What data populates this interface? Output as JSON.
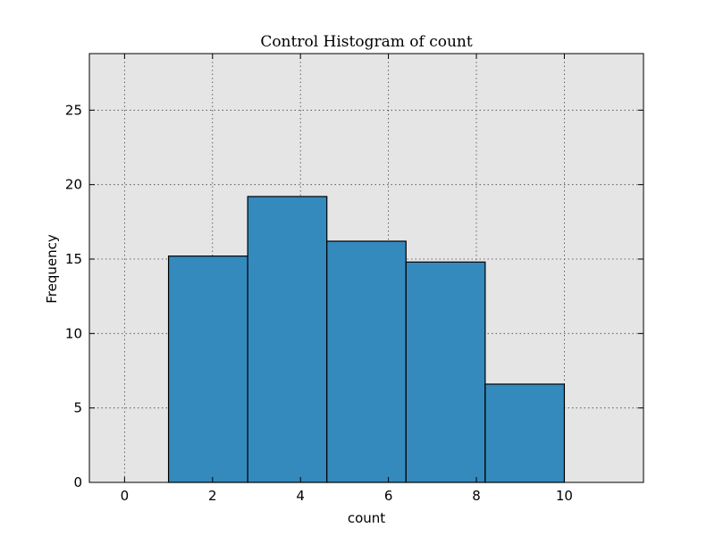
{
  "chart_data": {
    "type": "bar",
    "title": "Control Histogram of count",
    "xlabel": "count",
    "ylabel": "Frequency",
    "xlim": [
      -0.8,
      11.8
    ],
    "ylim": [
      0,
      28.8
    ],
    "x_ticks": [
      0,
      2,
      4,
      6,
      8,
      10
    ],
    "y_ticks": [
      0,
      5,
      10,
      15,
      20,
      25
    ],
    "grid": true,
    "bins": [
      {
        "start": 1.0,
        "end": 2.8,
        "value": 15.2
      },
      {
        "start": 2.8,
        "end": 4.6,
        "value": 19.2
      },
      {
        "start": 4.6,
        "end": 6.4,
        "value": 16.2
      },
      {
        "start": 6.4,
        "end": 8.2,
        "value": 14.8
      },
      {
        "start": 8.2,
        "end": 10.0,
        "value": 6.6
      }
    ],
    "colors": {
      "bar": "#348abd",
      "plot_background": "#e5e5e5"
    }
  }
}
